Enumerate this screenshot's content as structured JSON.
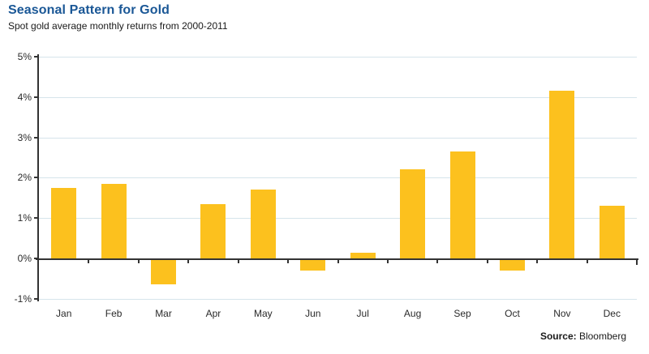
{
  "header": {
    "title": "Seasonal Pattern for Gold",
    "subtitle": "Spot gold average monthly returns from 2000-2011"
  },
  "chart_data": {
    "type": "bar",
    "title": "Seasonal Pattern for Gold",
    "subtitle": "Spot gold average monthly returns from 2000-2011",
    "categories": [
      "Jan",
      "Feb",
      "Mar",
      "Apr",
      "May",
      "Jun",
      "Jul",
      "Aug",
      "Sep",
      "Oct",
      "Nov",
      "Dec"
    ],
    "values": [
      1.75,
      1.85,
      -0.65,
      1.35,
      1.7,
      -0.3,
      0.15,
      2.2,
      2.65,
      -0.3,
      4.15,
      1.3
    ],
    "xlabel": "",
    "ylabel": "",
    "ylim": [
      -1,
      5
    ],
    "yticks": [
      5,
      4,
      3,
      2,
      1,
      0,
      -1
    ],
    "ytick_labels": [
      "5%",
      "4%",
      "3%",
      "2%",
      "1%",
      "0%",
      "-1%"
    ],
    "grid": true,
    "legend": false,
    "bar_color": "#FCC11E",
    "gridline_color": "#D6E4EB",
    "axis_color": "#333333"
  },
  "colors": {
    "title": "#1A5796",
    "text": "#1a1a1a",
    "background": "#ffffff"
  },
  "footer": {
    "source_label": "Source:",
    "source_value": " Bloomberg"
  }
}
